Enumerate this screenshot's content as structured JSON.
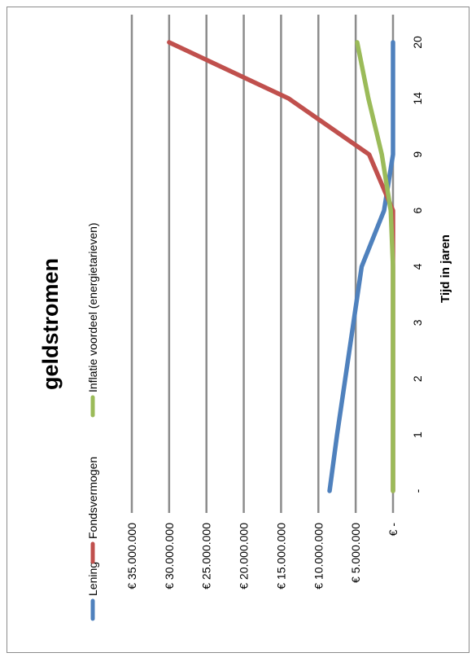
{
  "chart_data": {
    "type": "line",
    "title": "geldstromen",
    "xlabel": "Tijd in jaren",
    "ylabel": "",
    "categories": [
      "-",
      "1",
      "2",
      "3",
      "4",
      "6",
      "9",
      "14",
      "20"
    ],
    "y_tick_labels": [
      "€ -",
      "€ 5.000.000",
      "€ 10.000.000",
      "€ 15.000.000",
      "€ 20.000.000",
      "€ 25.000.000",
      "€ 30.000.000",
      "€ 35.000.000"
    ],
    "ylim": [
      0,
      35000000
    ],
    "y_step": 5000000,
    "grid": true,
    "legend_position": "top",
    "series": [
      {
        "name": "Lening",
        "color": "#4f81bd",
        "values": [
          8500000,
          7500000,
          6400000,
          5300000,
          4200000,
          1200000,
          0,
          0,
          0
        ]
      },
      {
        "name": "Fondsvermogen",
        "color": "#c0504d",
        "values": [
          0,
          0,
          0,
          0,
          0,
          0,
          3200000,
          14000000,
          30000000
        ]
      },
      {
        "name": "Inflatie voordeel (energietarieven)",
        "color": "#9bbb59",
        "values": [
          0,
          0,
          0,
          0,
          0,
          300000,
          1500000,
          3300000,
          4800000
        ]
      }
    ]
  }
}
